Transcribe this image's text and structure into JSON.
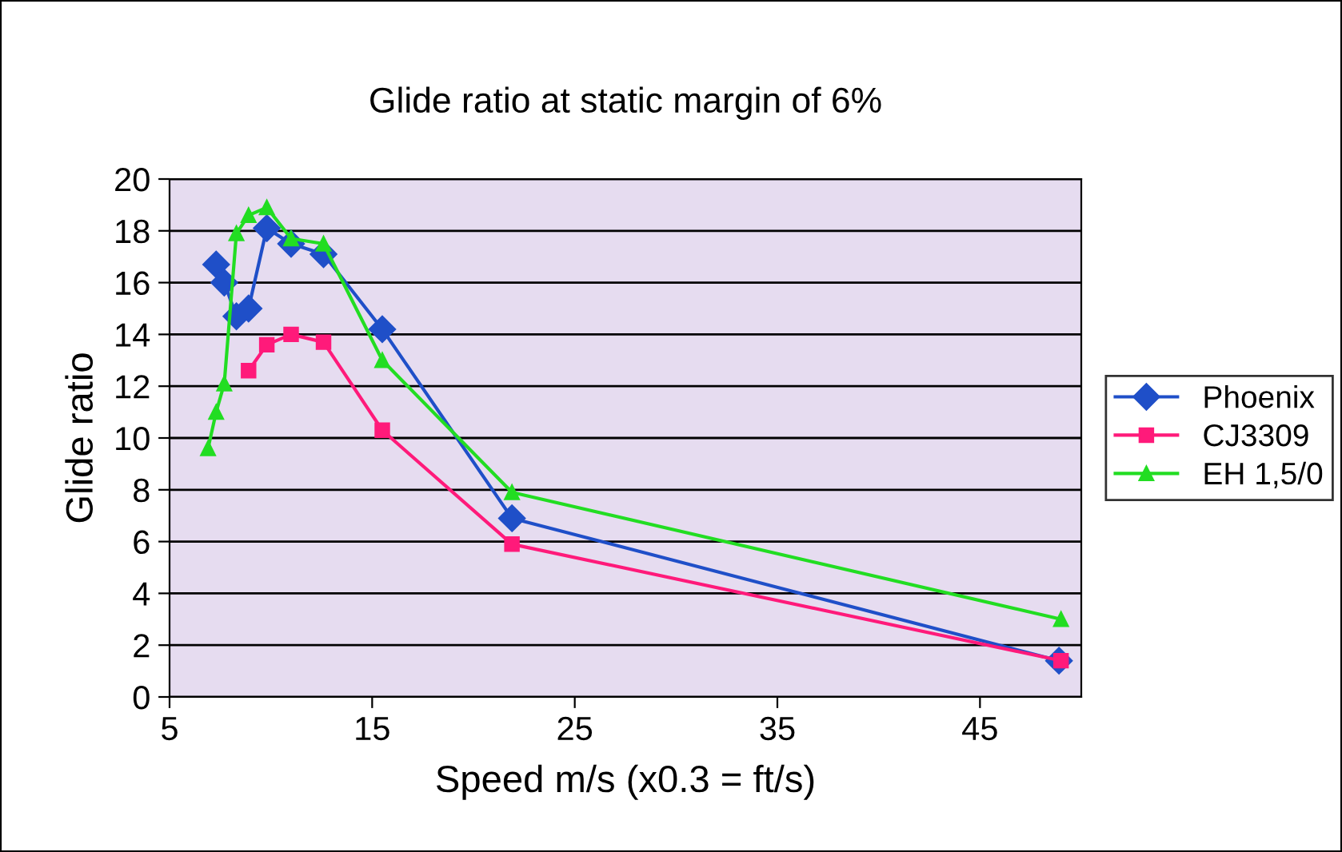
{
  "chart_data": {
    "type": "line",
    "title": "Glide ratio at static margin of 6%",
    "xlabel": "Speed m/s (x0.3 = ft/s)",
    "ylabel": "Glide ratio",
    "xlim": [
      5,
      50
    ],
    "xticks": [
      5,
      15,
      25,
      35,
      45
    ],
    "ylim": [
      0,
      20
    ],
    "yticks": [
      0,
      2,
      4,
      6,
      8,
      10,
      12,
      14,
      16,
      18,
      20
    ],
    "grid": "y",
    "legend": "right",
    "series": [
      {
        "name": "Phoenix",
        "color": "#1f4fc8",
        "marker": "diamond",
        "x": [
          7.3,
          7.7,
          8.3,
          8.9,
          9.8,
          11.0,
          12.6,
          15.5,
          21.9,
          48.9
        ],
        "values": [
          16.7,
          16.0,
          14.7,
          15.0,
          18.1,
          17.5,
          17.1,
          14.2,
          6.9,
          1.4
        ]
      },
      {
        "name": "CJ3309",
        "color": "#ff1a7a",
        "marker": "square",
        "x": [
          8.9,
          9.8,
          11.0,
          12.6,
          15.5,
          21.9,
          49.0
        ],
        "values": [
          12.6,
          13.6,
          14.0,
          13.7,
          10.3,
          5.9,
          1.4
        ]
      },
      {
        "name": "EH 1,5/0",
        "color": "#22dd22",
        "marker": "triangle",
        "x": [
          6.9,
          7.3,
          7.7,
          8.3,
          8.9,
          9.8,
          11.0,
          12.6,
          15.5,
          21.9,
          49.0
        ],
        "values": [
          9.6,
          11.0,
          12.1,
          17.9,
          18.6,
          18.9,
          17.7,
          17.5,
          13.0,
          7.9,
          3.0
        ]
      }
    ]
  }
}
